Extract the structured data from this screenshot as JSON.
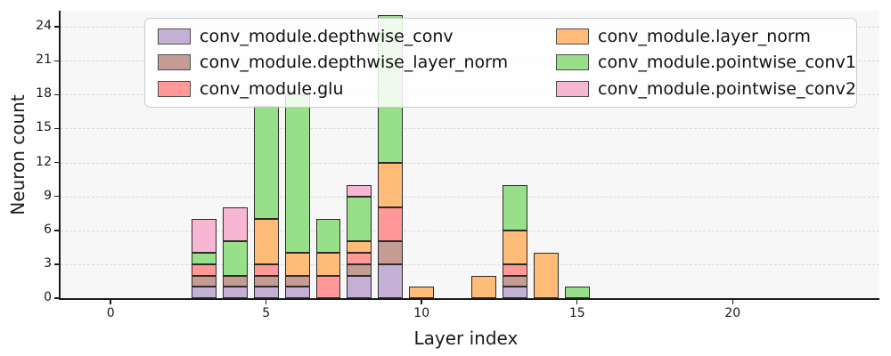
{
  "figure": {
    "xlabel": "Layer index",
    "ylabel": "Neuron count"
  },
  "chart_data": {
    "type": "bar",
    "stacked": true,
    "title": "",
    "xlabel": "Layer index",
    "ylabel": "Neuron count",
    "x": [
      3,
      4,
      5,
      6,
      7,
      8,
      9,
      10,
      12,
      13,
      14,
      15
    ],
    "series": [
      {
        "name": "conv_module.depthwise_conv",
        "color": "#c5b0d5",
        "values": [
          1,
          1,
          1,
          1,
          0,
          2,
          3,
          0,
          0,
          1,
          0,
          0
        ]
      },
      {
        "name": "conv_module.depthwise_layer_norm",
        "color": "#c49c94",
        "values": [
          1,
          1,
          1,
          1,
          0,
          1,
          2,
          0,
          0,
          1,
          0,
          0
        ]
      },
      {
        "name": "conv_module.glu",
        "color": "#ff9896",
        "values": [
          1,
          0,
          1,
          0,
          2,
          1,
          3,
          0,
          0,
          1,
          0,
          0
        ]
      },
      {
        "name": "conv_module.layer_norm",
        "color": "#ffbb78",
        "values": [
          0,
          0,
          4,
          2,
          2,
          1,
          4,
          1,
          2,
          3,
          4,
          0
        ]
      },
      {
        "name": "conv_module.pointwise_conv1",
        "color": "#98df8a",
        "values": [
          1,
          3,
          10,
          14,
          3,
          4,
          13,
          0,
          0,
          4,
          0,
          1
        ]
      },
      {
        "name": "conv_module.pointwise_conv2",
        "color": "#f7b6d2",
        "values": [
          3,
          3,
          0,
          0,
          0,
          1,
          0,
          0,
          0,
          0,
          0,
          0
        ]
      }
    ],
    "bar_totals": [
      7,
      8,
      17,
      18,
      7,
      10,
      25,
      1,
      2,
      10,
      4,
      1
    ],
    "xticks": [
      0,
      5,
      10,
      15,
      20
    ],
    "yticks": [
      0,
      3,
      6,
      9,
      12,
      15,
      18,
      21,
      24
    ],
    "xlim": [
      -1.61,
      24.72
    ],
    "ylim": [
      0,
      25.43
    ],
    "bar_width_units": 0.8,
    "grid": "horizontal-dashed",
    "legend_position": "upper center",
    "legend_columns": 2,
    "legend_entries": [
      "conv_module.depthwise_conv",
      "conv_module.depthwise_layer_norm",
      "conv_module.glu",
      "conv_module.layer_norm",
      "conv_module.pointwise_conv1",
      "conv_module.pointwise_conv2"
    ]
  }
}
